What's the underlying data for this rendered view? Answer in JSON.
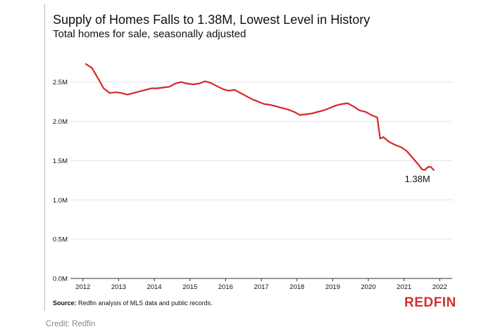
{
  "chart_data": {
    "type": "line",
    "title": "Supply of Homes Falls to 1.38M, Lowest Level in History",
    "subtitle": "Total homes for sale, seasonally adjusted",
    "xlabel": "",
    "ylabel": "",
    "xlim": [
      2011.65,
      2022.35
    ],
    "ylim": [
      0,
      2.9
    ],
    "x_ticks": [
      2012,
      2013,
      2014,
      2015,
      2016,
      2017,
      2018,
      2019,
      2020,
      2021,
      2022
    ],
    "x_tick_labels": [
      "2012",
      "2013",
      "2014",
      "2015",
      "2016",
      "2017",
      "2018",
      "2019",
      "2020",
      "2021",
      "2022"
    ],
    "y_ticks": [
      0,
      0.5,
      1.0,
      1.5,
      2.0,
      2.5
    ],
    "y_tick_labels": [
      "0.0M",
      "0.5M",
      "1.0M",
      "1.5M",
      "2.0M",
      "2.5M"
    ],
    "grid": "horizontal",
    "line_color": "#d62728",
    "series": [
      {
        "name": "",
        "x": [
          2012.08,
          2012.25,
          2012.42,
          2012.58,
          2012.75,
          2012.92,
          2013.08,
          2013.25,
          2013.42,
          2013.58,
          2013.75,
          2013.92,
          2014.08,
          2014.25,
          2014.42,
          2014.58,
          2014.75,
          2014.92,
          2015.08,
          2015.25,
          2015.42,
          2015.58,
          2015.75,
          2015.92,
          2016.08,
          2016.25,
          2016.42,
          2016.58,
          2016.75,
          2016.92,
          2017.08,
          2017.25,
          2017.42,
          2017.58,
          2017.75,
          2017.92,
          2018.08,
          2018.25,
          2018.42,
          2018.58,
          2018.75,
          2018.92,
          2019.08,
          2019.25,
          2019.42,
          2019.58,
          2019.75,
          2019.92,
          2020.08,
          2020.25,
          2020.33,
          2020.42,
          2020.58,
          2020.75,
          2020.92,
          2021.08,
          2021.25,
          2021.42,
          2021.5,
          2021.58,
          2021.67,
          2021.75,
          2021.83
        ],
        "values": [
          2.73,
          2.68,
          2.55,
          2.42,
          2.36,
          2.37,
          2.36,
          2.34,
          2.36,
          2.38,
          2.4,
          2.42,
          2.42,
          2.43,
          2.44,
          2.48,
          2.5,
          2.48,
          2.47,
          2.48,
          2.51,
          2.49,
          2.45,
          2.41,
          2.39,
          2.4,
          2.36,
          2.32,
          2.28,
          2.25,
          2.22,
          2.21,
          2.19,
          2.17,
          2.15,
          2.12,
          2.08,
          2.09,
          2.1,
          2.12,
          2.14,
          2.17,
          2.2,
          2.22,
          2.23,
          2.19,
          2.14,
          2.12,
          2.08,
          2.05,
          1.78,
          1.8,
          1.74,
          1.7,
          1.67,
          1.62,
          1.53,
          1.44,
          1.39,
          1.38,
          1.42,
          1.42,
          1.38
        ]
      }
    ],
    "annotations": [
      {
        "text": "1.38M",
        "x": 2021.83,
        "y": 1.38
      }
    ]
  },
  "source": {
    "label": "Source:",
    "text": "Redfin analysis of MLS data and public records."
  },
  "logo": "REDFIN",
  "credit": "Credit: Redfin"
}
